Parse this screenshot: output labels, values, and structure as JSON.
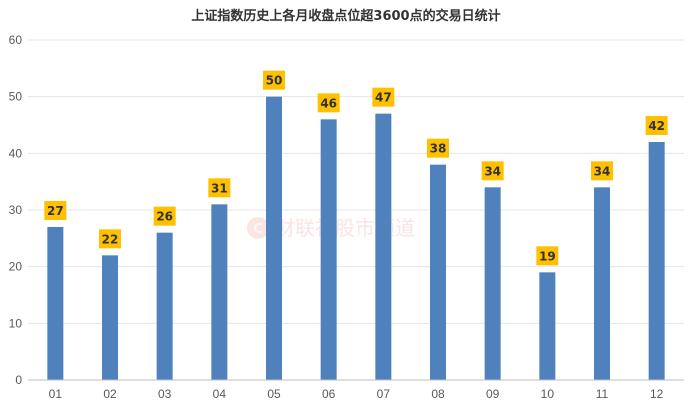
{
  "chart_data": {
    "type": "bar",
    "title": "上证指数历史上各月收盘点位超3600点的交易日统计",
    "categories": [
      "01",
      "02",
      "03",
      "04",
      "05",
      "06",
      "07",
      "08",
      "09",
      "10",
      "11",
      "12"
    ],
    "values": [
      27,
      22,
      26,
      31,
      50,
      46,
      47,
      38,
      34,
      19,
      34,
      42
    ],
    "yticks": [
      "0",
      "10",
      "20",
      "30",
      "40",
      "50",
      "60"
    ],
    "ylim": [
      0,
      60
    ],
    "xlabel": "",
    "ylabel": "",
    "grid": true,
    "legend": "none",
    "data_labels": [
      "27",
      "22",
      "26",
      "31",
      "50",
      "46",
      "47",
      "38",
      "34",
      "19",
      "34",
      "42"
    ]
  },
  "watermark": {
    "logo_letter": "C",
    "text": "财联社股市频道"
  },
  "colors": {
    "bar": "#4f81bd",
    "label_bg": "#ffc000",
    "grid": "#e6e6e6",
    "axis": "#bfbfbf"
  }
}
